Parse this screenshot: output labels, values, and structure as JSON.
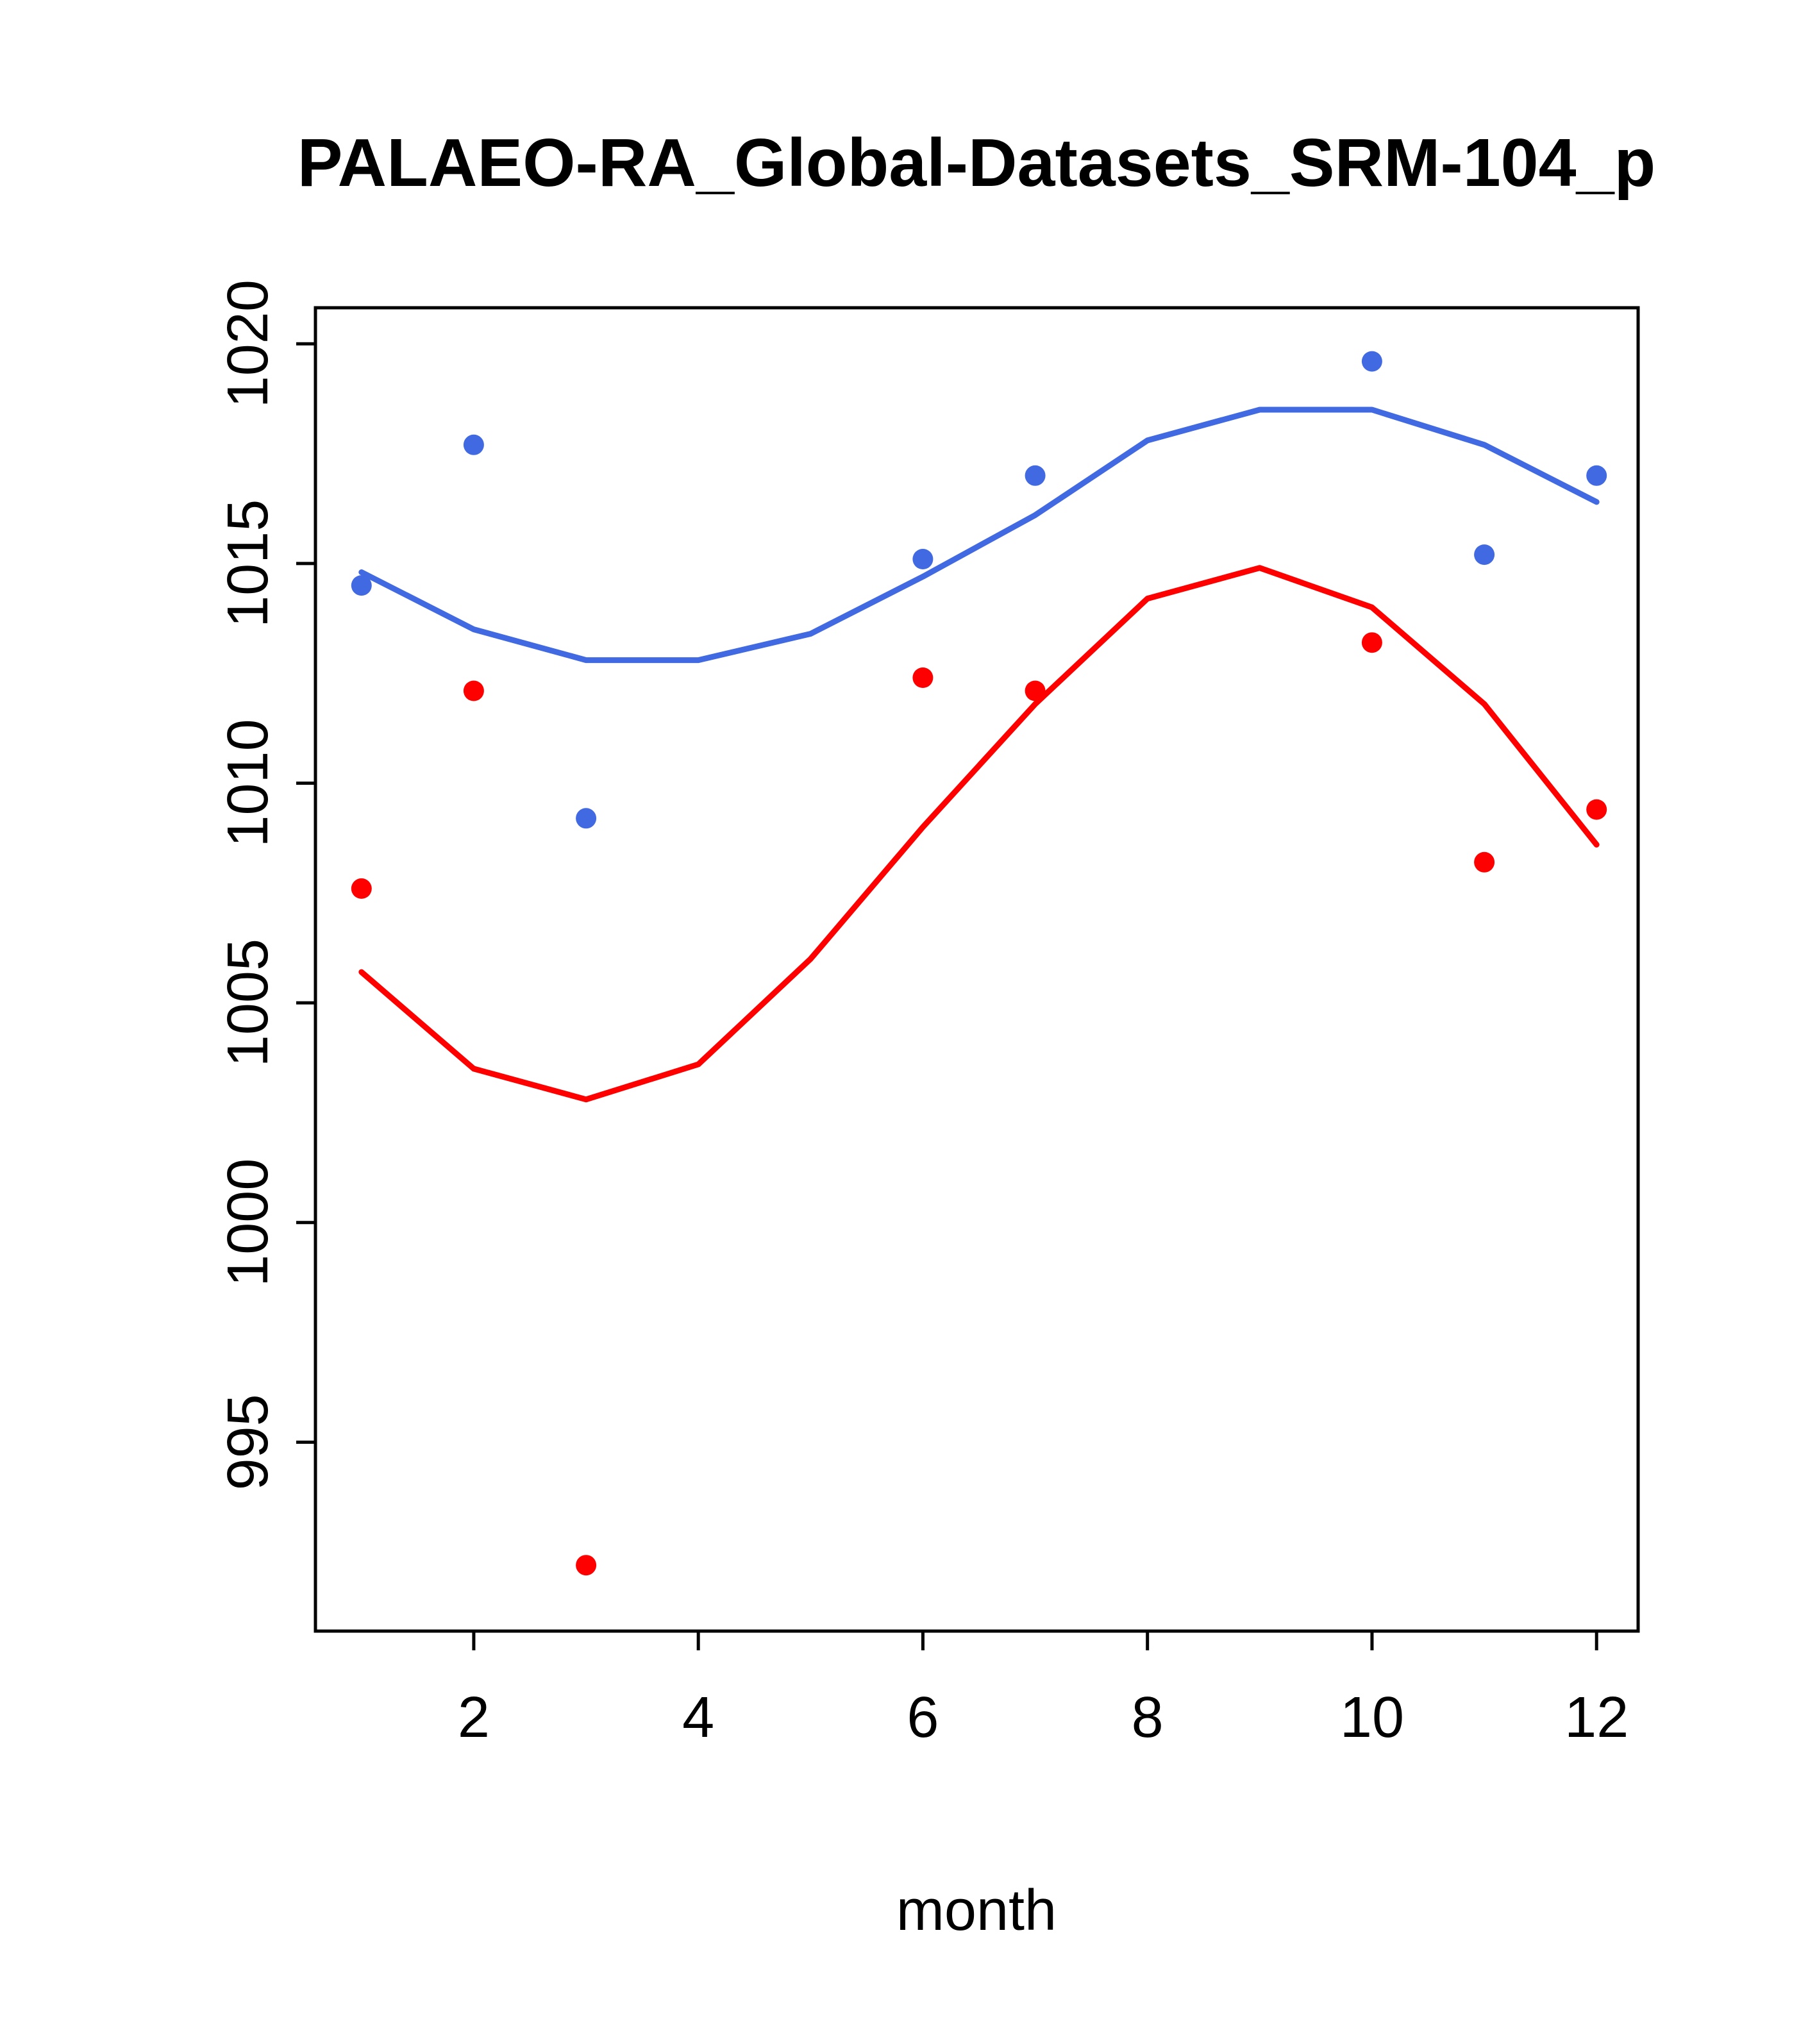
{
  "chart_data": {
    "type": "line",
    "title": "PALAEO-RA_Global-Datasets_SRM-104_p",
    "xlabel": "month",
    "ylabel": "",
    "xlim": [
      0.59,
      12.37
    ],
    "ylim": [
      990.7,
      1020.82
    ],
    "xticks": [
      2,
      4,
      6,
      8,
      10,
      12
    ],
    "yticks": [
      995,
      1000,
      1005,
      1010,
      1015,
      1020
    ],
    "grid": false,
    "legend": "none",
    "colors": {
      "blue": "#4169E1",
      "red": "#FF0000",
      "axis": "#000000"
    },
    "series": [
      {
        "name": "blue-points",
        "kind": "scatter",
        "color": "#4169E1",
        "x": [
          1,
          2,
          3,
          6,
          7,
          10,
          11,
          12
        ],
        "y": [
          1014.5,
          1017.7,
          1009.2,
          1015.1,
          1017.0,
          1019.6,
          1015.2,
          1017.0
        ]
      },
      {
        "name": "red-points",
        "kind": "scatter",
        "color": "#FF0000",
        "x": [
          1,
          2,
          3,
          6,
          7,
          10,
          11,
          12
        ],
        "y": [
          1007.6,
          1012.1,
          992.2,
          1012.4,
          1012.1,
          1013.2,
          1008.2,
          1009.4
        ]
      },
      {
        "name": "blue-line",
        "kind": "line",
        "color": "#4169E1",
        "x": [
          1,
          2,
          3,
          4,
          5,
          6,
          7,
          8,
          9,
          10,
          11,
          12
        ],
        "y": [
          1014.8,
          1013.5,
          1012.8,
          1012.8,
          1013.4,
          1014.7,
          1016.1,
          1017.8,
          1018.5,
          1018.5,
          1017.7,
          1016.4
        ]
      },
      {
        "name": "red-line",
        "kind": "line",
        "color": "#FF0000",
        "x": [
          1,
          2,
          3,
          4,
          5,
          6,
          7,
          8,
          9,
          10,
          11,
          12
        ],
        "y": [
          1005.7,
          1003.5,
          1002.8,
          1003.6,
          1006.0,
          1009.0,
          1011.8,
          1014.2,
          1014.9,
          1014.0,
          1011.8,
          1008.6
        ]
      }
    ]
  }
}
